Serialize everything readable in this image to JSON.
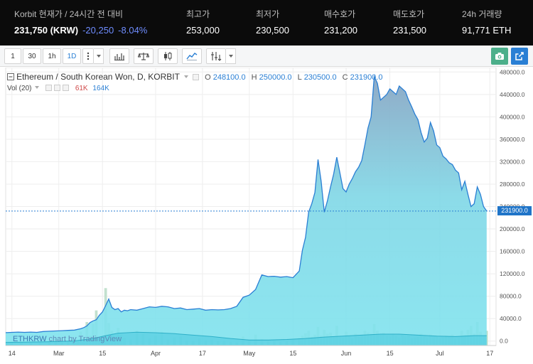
{
  "ticker": {
    "current_label": "Korbit 현재가 / 24시간 전 대비",
    "price": "231,750 (KRW)",
    "change": "-20,250",
    "change_pct": "-8.04%",
    "high_label": "최고가",
    "high_value": "253,000",
    "low_label": "최저가",
    "low_value": "230,500",
    "bid_label": "매수호가",
    "bid_value": "231,200",
    "ask_label": "매도호가",
    "ask_value": "231,500",
    "volume_label": "24h 거래량",
    "volume_value": "91,771 ETH",
    "change_color": "#6f8dff"
  },
  "toolbar": {
    "intervals": [
      "1",
      "30",
      "1h",
      "1D"
    ],
    "active_interval": "1D",
    "icons": [
      "more-vertical-icon",
      "chevron-down-icon",
      "bar-chart-icon",
      "compare-scales-icon",
      "candlestick-icon",
      "area-chart-icon",
      "indicators-icon",
      "chevron-down-icon",
      "camera-icon",
      "popout-icon"
    ],
    "camera_color": "#4caf8a",
    "popout_color": "#2a7fd4"
  },
  "legend": {
    "title": "Ethereum / South Korean Won, D, KORBIT",
    "open_label": "O",
    "open_value": "248100.0",
    "high_label": "H",
    "high_value": "250000.0",
    "low_label": "L",
    "low_value": "230500.0",
    "close_label": "C",
    "close_value": "231900.0",
    "volume_label": "Vol (20)",
    "volume_value_1": "61K",
    "volume_value_2": "164K",
    "volume_value_1_color": "#d04a4a",
    "volume_value_2_color": "#2a7fd4"
  },
  "watermark": {
    "symbol": "ETHKRW",
    "text": "chart by TradingView"
  },
  "chart_data": {
    "type": "area",
    "series_color": "#2a7fd4",
    "fill_color": "#7fe3ee",
    "last_price_label": "231900.0",
    "last_price": 231900,
    "ylim": [
      -8000,
      488000
    ],
    "y_ticks": [
      0,
      40000,
      80000,
      120000,
      160000,
      200000,
      240000,
      280000,
      320000,
      360000,
      400000,
      440000,
      480000
    ],
    "y_tick_labels": [
      "0.0",
      "40000.0",
      "80000.0",
      "120000.0",
      "160000.0",
      "200000.0",
      "240000.0",
      "280000.0",
      "320000.0",
      "360000.0",
      "400000.0",
      "440000.0",
      "480000.0"
    ],
    "x_tick_labels": [
      {
        "day": 0,
        "label": "14"
      },
      {
        "day": 15,
        "label": "Mar"
      },
      {
        "day": 29,
        "label": "15"
      },
      {
        "day": 46,
        "label": "Apr"
      },
      {
        "day": 61,
        "label": "17"
      },
      {
        "day": 76,
        "label": "May"
      },
      {
        "day": 90,
        "label": "15"
      },
      {
        "day": 107,
        "label": "Jun"
      },
      {
        "day": 121,
        "label": "15"
      },
      {
        "day": 137,
        "label": "Jul"
      },
      {
        "day": 153,
        "label": "17"
      }
    ],
    "x_range": [
      -2,
      155
    ],
    "price": [
      [
        -2,
        15000
      ],
      [
        0,
        15500
      ],
      [
        2,
        16000
      ],
      [
        4,
        15500
      ],
      [
        6,
        16000
      ],
      [
        8,
        15500
      ],
      [
        10,
        17000
      ],
      [
        12,
        17500
      ],
      [
        14,
        18000
      ],
      [
        16,
        18500
      ],
      [
        18,
        19000
      ],
      [
        20,
        19500
      ],
      [
        22,
        22000
      ],
      [
        23,
        24000
      ],
      [
        24,
        27000
      ],
      [
        25,
        33000
      ],
      [
        26,
        36000
      ],
      [
        27,
        38000
      ],
      [
        28,
        46000
      ],
      [
        29,
        52000
      ],
      [
        30,
        63000
      ],
      [
        31,
        75000
      ],
      [
        32,
        60000
      ],
      [
        33,
        56000
      ],
      [
        34,
        58000
      ],
      [
        35,
        52000
      ],
      [
        36,
        55000
      ],
      [
        37,
        54000
      ],
      [
        38,
        56000
      ],
      [
        40,
        55000
      ],
      [
        42,
        58000
      ],
      [
        44,
        61000
      ],
      [
        46,
        60000
      ],
      [
        48,
        62000
      ],
      [
        50,
        61000
      ],
      [
        52,
        58000
      ],
      [
        54,
        59000
      ],
      [
        56,
        56000
      ],
      [
        58,
        57000
      ],
      [
        60,
        58000
      ],
      [
        62,
        55000
      ],
      [
        64,
        56000
      ],
      [
        66,
        55500
      ],
      [
        68,
        56000
      ],
      [
        70,
        58000
      ],
      [
        72,
        62000
      ],
      [
        74,
        78000
      ],
      [
        76,
        82000
      ],
      [
        78,
        92000
      ],
      [
        80,
        118000
      ],
      [
        82,
        115000
      ],
      [
        84,
        115500
      ],
      [
        86,
        114000
      ],
      [
        88,
        115000
      ],
      [
        90,
        113000
      ],
      [
        92,
        125000
      ],
      [
        93,
        162000
      ],
      [
        94,
        185000
      ],
      [
        95,
        230000
      ],
      [
        96,
        245000
      ],
      [
        97,
        265000
      ],
      [
        98,
        324000
      ],
      [
        99,
        285000
      ],
      [
        100,
        230000
      ],
      [
        101,
        250000
      ],
      [
        102,
        275000
      ],
      [
        103,
        298000
      ],
      [
        104,
        328000
      ],
      [
        105,
        300000
      ],
      [
        106,
        272000
      ],
      [
        107,
        266000
      ],
      [
        108,
        280000
      ],
      [
        109,
        290000
      ],
      [
        110,
        302000
      ],
      [
        111,
        310000
      ],
      [
        112,
        322000
      ],
      [
        113,
        350000
      ],
      [
        114,
        380000
      ],
      [
        115,
        400000
      ],
      [
        116,
        472000
      ],
      [
        117,
        460000
      ],
      [
        118,
        430000
      ],
      [
        119,
        435000
      ],
      [
        120,
        440000
      ],
      [
        121,
        450000
      ],
      [
        122,
        445000
      ],
      [
        123,
        440000
      ],
      [
        124,
        455000
      ],
      [
        125,
        450000
      ],
      [
        126,
        445000
      ],
      [
        127,
        430000
      ],
      [
        128,
        418000
      ],
      [
        129,
        405000
      ],
      [
        130,
        395000
      ],
      [
        131,
        372000
      ],
      [
        132,
        355000
      ],
      [
        133,
        362000
      ],
      [
        134,
        390000
      ],
      [
        135,
        375000
      ],
      [
        136,
        350000
      ],
      [
        137,
        345000
      ],
      [
        138,
        330000
      ],
      [
        139,
        325000
      ],
      [
        140,
        318000
      ],
      [
        141,
        315000
      ],
      [
        142,
        305000
      ],
      [
        143,
        300000
      ],
      [
        144,
        270000
      ],
      [
        145,
        285000
      ],
      [
        146,
        262000
      ],
      [
        147,
        240000
      ],
      [
        148,
        245000
      ],
      [
        149,
        275000
      ],
      [
        150,
        262000
      ],
      [
        151,
        240000
      ],
      [
        152,
        231900
      ]
    ],
    "volume_ma": [
      [
        -2,
        6000
      ],
      [
        10,
        7000
      ],
      [
        20,
        9000
      ],
      [
        26,
        14000
      ],
      [
        30,
        20000
      ],
      [
        34,
        25000
      ],
      [
        40,
        27000
      ],
      [
        46,
        26000
      ],
      [
        52,
        24000
      ],
      [
        58,
        21000
      ],
      [
        64,
        18000
      ],
      [
        70,
        14000
      ],
      [
        76,
        11000
      ],
      [
        82,
        11000
      ],
      [
        88,
        12000
      ],
      [
        94,
        14000
      ],
      [
        100,
        17000
      ],
      [
        106,
        19000
      ],
      [
        112,
        21000
      ],
      [
        118,
        23000
      ],
      [
        124,
        23000
      ],
      [
        130,
        21000
      ],
      [
        136,
        19000
      ],
      [
        142,
        18000
      ],
      [
        148,
        20000
      ],
      [
        152,
        20000
      ]
    ],
    "volume_bars": [
      [
        0,
        5000
      ],
      [
        3,
        6000
      ],
      [
        6,
        4500
      ],
      [
        9,
        7000
      ],
      [
        12,
        9000
      ],
      [
        14,
        14000
      ],
      [
        16,
        6000
      ],
      [
        18,
        8000
      ],
      [
        20,
        10000
      ],
      [
        21,
        7000
      ],
      [
        22,
        28000
      ],
      [
        23,
        12000
      ],
      [
        24,
        48000
      ],
      [
        25,
        20000
      ],
      [
        26,
        44000
      ],
      [
        27,
        72000
      ],
      [
        28,
        18000
      ],
      [
        29,
        8000
      ],
      [
        30,
        118000
      ],
      [
        31,
        46000
      ],
      [
        32,
        30000
      ],
      [
        33,
        12000
      ],
      [
        34,
        36000
      ],
      [
        35,
        22000
      ],
      [
        36,
        15000
      ],
      [
        38,
        12000
      ],
      [
        40,
        30000
      ],
      [
        42,
        24000
      ],
      [
        44,
        14000
      ],
      [
        46,
        20000
      ],
      [
        48,
        28000
      ],
      [
        50,
        12000
      ],
      [
        52,
        16000
      ],
      [
        54,
        18000
      ],
      [
        56,
        10000
      ],
      [
        58,
        9000
      ],
      [
        60,
        14000
      ],
      [
        62,
        10000
      ],
      [
        64,
        12000
      ],
      [
        66,
        8000
      ],
      [
        68,
        9000
      ],
      [
        70,
        7000
      ],
      [
        72,
        6000
      ],
      [
        74,
        18000
      ],
      [
        76,
        10000
      ],
      [
        78,
        22000
      ],
      [
        80,
        13000
      ],
      [
        82,
        8000
      ],
      [
        84,
        10000
      ],
      [
        86,
        7000
      ],
      [
        88,
        9000
      ],
      [
        90,
        11000
      ],
      [
        92,
        15000
      ],
      [
        93,
        20000
      ],
      [
        94,
        25000
      ],
      [
        95,
        30000
      ],
      [
        96,
        18000
      ],
      [
        97,
        22000
      ],
      [
        98,
        38000
      ],
      [
        99,
        20000
      ],
      [
        100,
        32000
      ],
      [
        101,
        24000
      ],
      [
        102,
        26000
      ],
      [
        103,
        18000
      ],
      [
        104,
        40000
      ],
      [
        105,
        16000
      ],
      [
        106,
        15000
      ],
      [
        107,
        28000
      ],
      [
        108,
        20000
      ],
      [
        109,
        14000
      ],
      [
        110,
        24000
      ],
      [
        111,
        18000
      ],
      [
        112,
        22000
      ],
      [
        113,
        30000
      ],
      [
        114,
        26000
      ],
      [
        115,
        24000
      ],
      [
        116,
        44000
      ],
      [
        117,
        30000
      ],
      [
        118,
        22000
      ],
      [
        119,
        26000
      ],
      [
        120,
        20000
      ],
      [
        121,
        18000
      ],
      [
        122,
        24000
      ],
      [
        123,
        20000
      ],
      [
        124,
        16000
      ],
      [
        125,
        22000
      ],
      [
        126,
        18000
      ],
      [
        127,
        20000
      ],
      [
        128,
        14000
      ],
      [
        129,
        16000
      ],
      [
        130,
        18000
      ],
      [
        131,
        24000
      ],
      [
        132,
        20000
      ],
      [
        133,
        16000
      ],
      [
        134,
        22000
      ],
      [
        135,
        18000
      ],
      [
        136,
        20000
      ],
      [
        137,
        14000
      ],
      [
        138,
        16000
      ],
      [
        139,
        20000
      ],
      [
        140,
        18000
      ],
      [
        141,
        22000
      ],
      [
        142,
        14000
      ],
      [
        143,
        16000
      ],
      [
        144,
        30000
      ],
      [
        145,
        22000
      ],
      [
        146,
        32000
      ],
      [
        147,
        40000
      ],
      [
        148,
        24000
      ],
      [
        149,
        48000
      ],
      [
        150,
        28000
      ],
      [
        151,
        20000
      ],
      [
        152,
        30000
      ]
    ]
  }
}
